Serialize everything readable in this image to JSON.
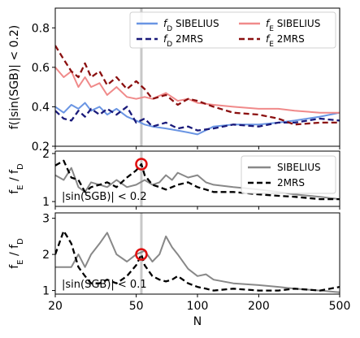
{
  "chart_data": {
    "type": "line",
    "xlabel": "N",
    "xscale": "log",
    "xlim": [
      20,
      500
    ],
    "xticks": [
      {
        "value": 20,
        "label": "20"
      },
      {
        "value": 50,
        "label": "50"
      },
      {
        "value": 100,
        "label": "100"
      },
      {
        "value": 200,
        "label": "200"
      },
      {
        "value": 500,
        "label": "500"
      }
    ],
    "vline": {
      "x": 53,
      "color": "#c8c8c8"
    },
    "panels": [
      {
        "id": "top",
        "ylabel": "f(|sin(SGB)| < 0.2)",
        "ylim": [
          0.2,
          0.9
        ],
        "yticks": [
          {
            "value": 0.2,
            "label": "0.2"
          },
          {
            "value": 0.4,
            "label": "0.4"
          },
          {
            "value": 0.6,
            "label": "0.6"
          },
          {
            "value": 0.8,
            "label": "0.8"
          }
        ],
        "legend": {
          "location": "top-right",
          "columns": 2
        },
        "annotation": "",
        "series": [
          {
            "name": "f_D SIBELIUS",
            "label_main": "f",
            "label_sub": "D",
            "label_rest": " SIBELIUS",
            "color": "#6a95e3",
            "dash": "solid",
            "x": [
              20,
              22,
              24,
              26,
              28,
              30,
              33,
              36,
              40,
              45,
              50,
              55,
              60,
              70,
              80,
              90,
              100,
              120,
              150,
              200,
              250,
              300,
              400,
              500
            ],
            "y": [
              0.4,
              0.37,
              0.41,
              0.39,
              0.42,
              0.38,
              0.4,
              0.36,
              0.39,
              0.35,
              0.33,
              0.31,
              0.3,
              0.29,
              0.28,
              0.27,
              0.26,
              0.3,
              0.31,
              0.31,
              0.32,
              0.33,
              0.35,
              0.37
            ]
          },
          {
            "name": "f_D 2MRS",
            "label_main": "f",
            "label_sub": "D",
            "label_rest": " 2MRS",
            "color": "#1a1a7a",
            "dash": "dashed",
            "x": [
              20,
              22,
              24,
              26,
              28,
              30,
              33,
              36,
              40,
              45,
              50,
              55,
              60,
              70,
              80,
              90,
              100,
              120,
              150,
              200,
              250,
              300,
              400,
              500
            ],
            "y": [
              0.38,
              0.34,
              0.33,
              0.38,
              0.35,
              0.39,
              0.36,
              0.39,
              0.36,
              0.4,
              0.32,
              0.34,
              0.3,
              0.32,
              0.29,
              0.3,
              0.28,
              0.29,
              0.31,
              0.3,
              0.32,
              0.32,
              0.34,
              0.33
            ]
          },
          {
            "name": "f_E SIBELIUS",
            "label_main": "f",
            "label_sub": "E",
            "label_rest": " SIBELIUS",
            "color": "#f08a8a",
            "dash": "solid",
            "x": [
              20,
              22,
              24,
              26,
              28,
              30,
              33,
              36,
              40,
              45,
              50,
              55,
              60,
              70,
              80,
              90,
              100,
              120,
              150,
              200,
              250,
              300,
              400,
              500
            ],
            "y": [
              0.6,
              0.55,
              0.58,
              0.5,
              0.55,
              0.5,
              0.52,
              0.46,
              0.5,
              0.45,
              0.44,
              0.45,
              0.44,
              0.47,
              0.43,
              0.44,
              0.42,
              0.41,
              0.4,
              0.39,
              0.39,
              0.38,
              0.37,
              0.37
            ]
          },
          {
            "name": "f_E 2MRS",
            "label_main": "f",
            "label_sub": "E",
            "label_rest": " 2MRS",
            "color": "#8b1010",
            "dash": "dashed",
            "x": [
              20,
              22,
              24,
              26,
              28,
              30,
              33,
              36,
              40,
              45,
              50,
              55,
              60,
              70,
              80,
              90,
              100,
              120,
              150,
              200,
              250,
              300,
              400,
              500
            ],
            "y": [
              0.71,
              0.64,
              0.58,
              0.55,
              0.62,
              0.55,
              0.58,
              0.51,
              0.55,
              0.49,
              0.53,
              0.49,
              0.44,
              0.46,
              0.41,
              0.44,
              0.43,
              0.4,
              0.37,
              0.36,
              0.34,
              0.31,
              0.32,
              0.32
            ]
          }
        ]
      },
      {
        "id": "middle",
        "ylabel": "fE / fD",
        "ylim": [
          0.9,
          2.05
        ],
        "yticks": [
          {
            "value": 1,
            "label": "1"
          },
          {
            "value": 2,
            "label": "2"
          }
        ],
        "legend": {
          "location": "top-right",
          "columns": 1
        },
        "annotation": "|sin(SGB)| < 0.2",
        "marker": {
          "x": 53,
          "y": 1.78,
          "color": "#e01010"
        },
        "series": [
          {
            "name": "SIBELIUS",
            "label_main": "SIBELIUS",
            "label_sub": "",
            "label_rest": "",
            "color": "#888888",
            "dash": "solid",
            "x": [
              20,
              22,
              24,
              26,
              28,
              30,
              33,
              36,
              40,
              45,
              50,
              55,
              60,
              65,
              70,
              75,
              80,
              90,
              100,
              110,
              120,
              150,
              200,
              250,
              300,
              400,
              500
            ],
            "y": [
              1.55,
              1.45,
              1.7,
              1.3,
              1.2,
              1.4,
              1.35,
              1.3,
              1.45,
              1.3,
              1.35,
              1.45,
              1.35,
              1.4,
              1.55,
              1.45,
              1.6,
              1.5,
              1.55,
              1.4,
              1.35,
              1.3,
              1.25,
              1.2,
              1.15,
              1.1,
              1.05
            ]
          },
          {
            "name": "2MRS",
            "label_main": "2MRS",
            "label_sub": "",
            "label_rest": "",
            "color": "#000000",
            "dash": "dashed",
            "x": [
              20,
              22,
              24,
              26,
              28,
              30,
              33,
              36,
              40,
              45,
              50,
              53,
              55,
              60,
              65,
              70,
              75,
              80,
              90,
              100,
              110,
              120,
              150,
              200,
              250,
              300,
              400,
              500
            ],
            "y": [
              1.75,
              1.85,
              1.5,
              1.45,
              1.2,
              1.3,
              1.35,
              1.4,
              1.3,
              1.5,
              1.65,
              1.78,
              1.55,
              1.35,
              1.3,
              1.25,
              1.3,
              1.35,
              1.4,
              1.3,
              1.25,
              1.2,
              1.2,
              1.15,
              1.12,
              1.1,
              1.05,
              1.05
            ]
          }
        ]
      },
      {
        "id": "bottom",
        "ylabel": "fE / fD",
        "ylim": [
          0.9,
          3.15
        ],
        "yticks": [
          {
            "value": 1,
            "label": "1"
          },
          {
            "value": 2,
            "label": "2"
          },
          {
            "value": 3,
            "label": "3"
          }
        ],
        "legend": null,
        "annotation": "|sin(SGB)| < 0.1",
        "marker": {
          "x": 53,
          "y": 2.0,
          "color": "#e01010"
        },
        "series": [
          {
            "name": "SIBELIUS",
            "color": "#888888",
            "dash": "solid",
            "x": [
              20,
              22,
              24,
              26,
              28,
              30,
              33,
              36,
              40,
              45,
              50,
              55,
              60,
              65,
              70,
              75,
              80,
              90,
              100,
              110,
              120,
              150,
              200,
              250,
              300,
              400,
              500
            ],
            "y": [
              1.65,
              1.65,
              1.65,
              2.0,
              1.65,
              2.0,
              2.3,
              2.6,
              2.0,
              1.8,
              2.0,
              2.1,
              1.8,
              2.0,
              2.5,
              2.2,
              2.0,
              1.6,
              1.4,
              1.45,
              1.3,
              1.2,
              1.15,
              1.1,
              1.05,
              1.0,
              0.95
            ]
          },
          {
            "name": "2MRS",
            "color": "#000000",
            "dash": "dashed",
            "x": [
              20,
              22,
              24,
              26,
              28,
              30,
              33,
              36,
              40,
              45,
              50,
              53,
              55,
              60,
              65,
              70,
              75,
              80,
              90,
              100,
              110,
              120,
              150,
              200,
              250,
              300,
              400,
              500
            ],
            "y": [
              2.0,
              2.65,
              2.3,
              1.65,
              1.4,
              1.2,
              1.2,
              1.3,
              1.2,
              1.4,
              1.7,
              2.0,
              1.7,
              1.4,
              1.3,
              1.25,
              1.3,
              1.4,
              1.2,
              1.1,
              1.05,
              1.0,
              1.05,
              1.0,
              1.0,
              1.05,
              1.0,
              1.1
            ]
          }
        ]
      }
    ]
  }
}
